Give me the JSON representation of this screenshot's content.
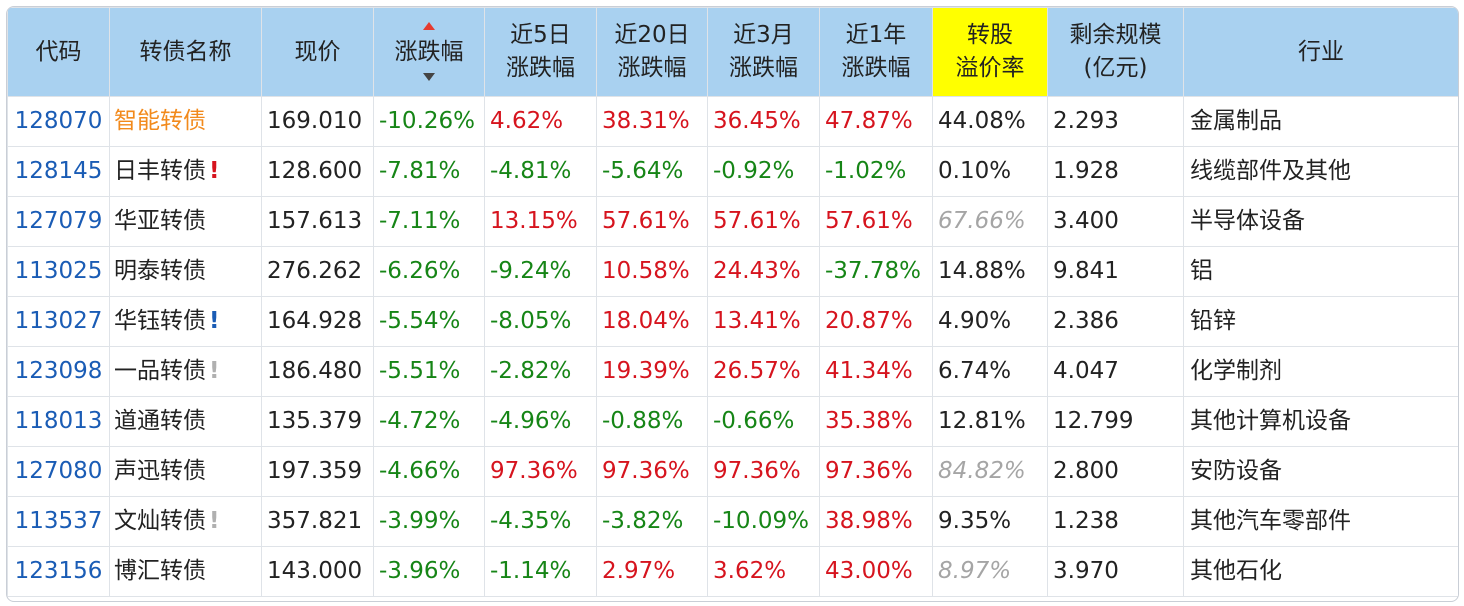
{
  "columns": [
    {
      "key": "code",
      "line1": "代码",
      "line2": ""
    },
    {
      "key": "name",
      "line1": "转债名称",
      "line2": ""
    },
    {
      "key": "price",
      "line1": "现价",
      "line2": ""
    },
    {
      "key": "chg",
      "line1": "涨跌幅",
      "line2": ""
    },
    {
      "key": "d5",
      "line1": "近5日",
      "line2": "涨跌幅"
    },
    {
      "key": "d20",
      "line1": "近20日",
      "line2": "涨跌幅"
    },
    {
      "key": "m3",
      "line1": "近3月",
      "line2": "涨跌幅"
    },
    {
      "key": "y1",
      "line1": "近1年",
      "line2": "涨跌幅"
    },
    {
      "key": "prem",
      "line1": "转股",
      "line2": "溢价率"
    },
    {
      "key": "scale",
      "line1": "剩余规模",
      "line2": "(亿元)"
    },
    {
      "key": "ind",
      "line1": "行业",
      "line2": ""
    }
  ],
  "sort": {
    "column": "chg",
    "direction": "desc"
  },
  "colors": {
    "up": "#d6141e",
    "down": "#168516",
    "code": "#1a5cb5",
    "highlight_name": "#f28a1c",
    "header": "#a9d1f0",
    "header_highlight": "#ffff00"
  },
  "rows": [
    {
      "code": "128070",
      "name": "智能转债",
      "mark": "",
      "name_highlight": true,
      "price": "169.010",
      "chg": "-10.26%",
      "d5": "4.62%",
      "d20": "38.31%",
      "m3": "36.45%",
      "y1": "47.87%",
      "prem": "44.08%",
      "prem_dim": false,
      "scale": "2.293",
      "ind": "金属制品"
    },
    {
      "code": "128145",
      "name": "日丰转债",
      "mark": "!",
      "mark_color": "red",
      "name_highlight": false,
      "price": "128.600",
      "chg": "-7.81%",
      "d5": "-4.81%",
      "d20": "-5.64%",
      "m3": "-0.92%",
      "y1": "-1.02%",
      "prem": "0.10%",
      "prem_dim": false,
      "scale": "1.928",
      "ind": "线缆部件及其他"
    },
    {
      "code": "127079",
      "name": "华亚转债",
      "mark": "",
      "name_highlight": false,
      "price": "157.613",
      "chg": "-7.11%",
      "d5": "13.15%",
      "d20": "57.61%",
      "m3": "57.61%",
      "y1": "57.61%",
      "prem": "67.66%",
      "prem_dim": true,
      "scale": "3.400",
      "ind": "半导体设备"
    },
    {
      "code": "113025",
      "name": "明泰转债",
      "mark": "",
      "name_highlight": false,
      "price": "276.262",
      "chg": "-6.26%",
      "d5": "-9.24%",
      "d20": "10.58%",
      "m3": "24.43%",
      "y1": "-37.78%",
      "prem": "14.88%",
      "prem_dim": false,
      "scale": "9.841",
      "ind": "铝"
    },
    {
      "code": "113027",
      "name": "华钰转债",
      "mark": "!",
      "mark_color": "blue",
      "name_highlight": false,
      "price": "164.928",
      "chg": "-5.54%",
      "d5": "-8.05%",
      "d20": "18.04%",
      "m3": "13.41%",
      "y1": "20.87%",
      "prem": "4.90%",
      "prem_dim": false,
      "scale": "2.386",
      "ind": "铅锌"
    },
    {
      "code": "123098",
      "name": "一品转债",
      "mark": "!",
      "mark_color": "gray",
      "name_highlight": false,
      "price": "186.480",
      "chg": "-5.51%",
      "d5": "-2.82%",
      "d20": "19.39%",
      "m3": "26.57%",
      "y1": "41.34%",
      "prem": "6.74%",
      "prem_dim": false,
      "scale": "4.047",
      "ind": "化学制剂"
    },
    {
      "code": "118013",
      "name": "道通转债",
      "mark": "",
      "name_highlight": false,
      "price": "135.379",
      "chg": "-4.72%",
      "d5": "-4.96%",
      "d20": "-0.88%",
      "m3": "-0.66%",
      "y1": "35.38%",
      "prem": "12.81%",
      "prem_dim": false,
      "scale": "12.799",
      "ind": "其他计算机设备"
    },
    {
      "code": "127080",
      "name": "声迅转债",
      "mark": "",
      "name_highlight": false,
      "price": "197.359",
      "chg": "-4.66%",
      "d5": "97.36%",
      "d20": "97.36%",
      "m3": "97.36%",
      "y1": "97.36%",
      "prem": "84.82%",
      "prem_dim": true,
      "scale": "2.800",
      "ind": "安防设备"
    },
    {
      "code": "113537",
      "name": "文灿转债",
      "mark": "!",
      "mark_color": "gray",
      "name_highlight": false,
      "price": "357.821",
      "chg": "-3.99%",
      "d5": "-4.35%",
      "d20": "-3.82%",
      "m3": "-10.09%",
      "y1": "38.98%",
      "prem": "9.35%",
      "prem_dim": false,
      "scale": "1.238",
      "ind": "其他汽车零部件"
    },
    {
      "code": "123156",
      "name": "博汇转债",
      "mark": "",
      "name_highlight": false,
      "price": "143.000",
      "chg": "-3.96%",
      "d5": "-1.14%",
      "d20": "2.97%",
      "m3": "3.62%",
      "y1": "43.00%",
      "prem": "8.97%",
      "prem_dim": true,
      "scale": "3.970",
      "ind": "其他石化"
    }
  ]
}
